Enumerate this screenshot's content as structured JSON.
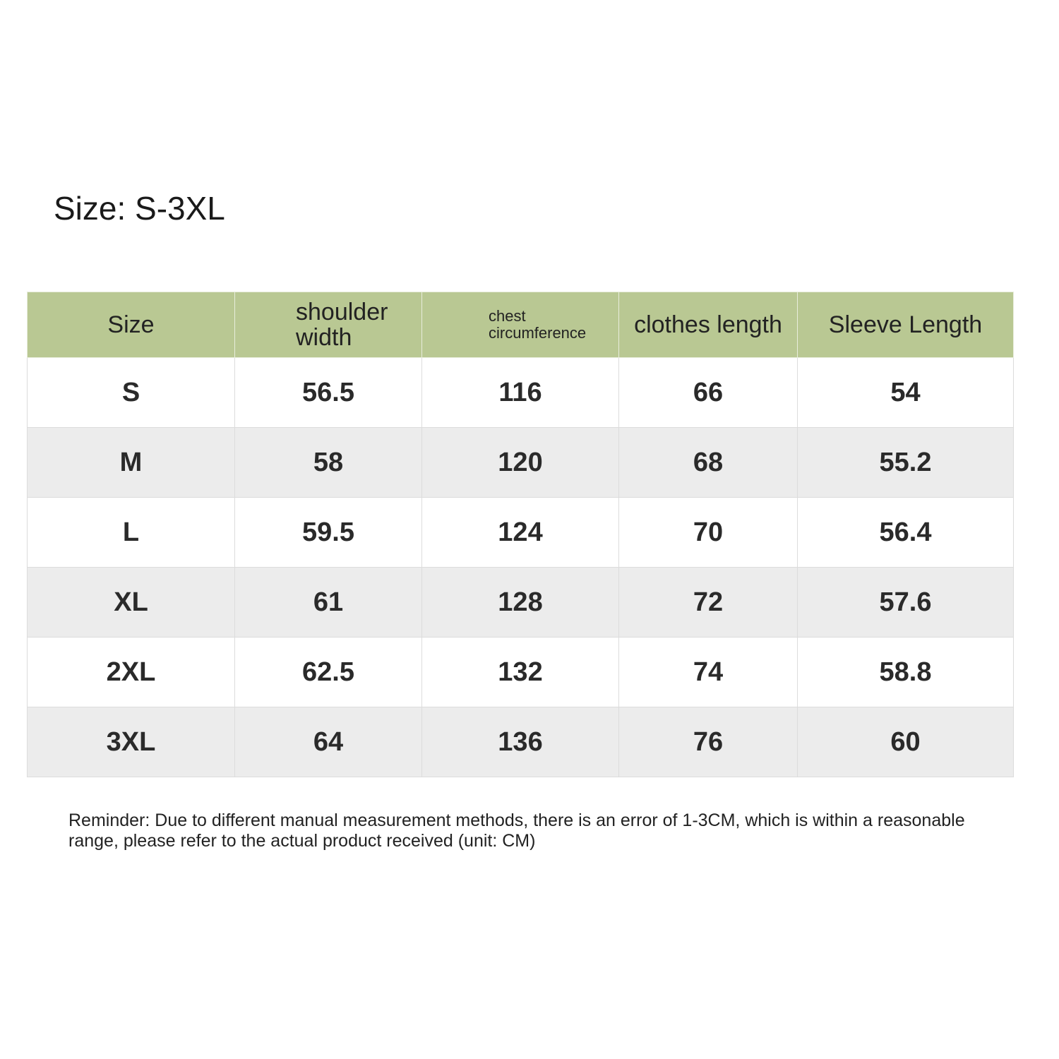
{
  "title": "Size: S-3XL",
  "table": {
    "headers": [
      "Size",
      "shoulder width",
      "chest circumference",
      "clothes length",
      "Sleeve Length"
    ],
    "rows": [
      [
        "S",
        "56.5",
        "116",
        "66",
        "54"
      ],
      [
        "M",
        "58",
        "120",
        "68",
        "55.2"
      ],
      [
        "L",
        "59.5",
        "124",
        "70",
        "56.4"
      ],
      [
        "XL",
        "61",
        "128",
        "72",
        "57.6"
      ],
      [
        "2XL",
        "62.5",
        "132",
        "74",
        "58.8"
      ],
      [
        "3XL",
        "64",
        "136",
        "76",
        "60"
      ]
    ]
  },
  "note": "Reminder: Due to different manual measurement methods, there is an error of 1-3CM, which is within a reasonable range, please refer to the actual product received (unit: CM)",
  "colors": {
    "header_bg": "#b9c893",
    "alt_row_bg": "#ececec"
  }
}
